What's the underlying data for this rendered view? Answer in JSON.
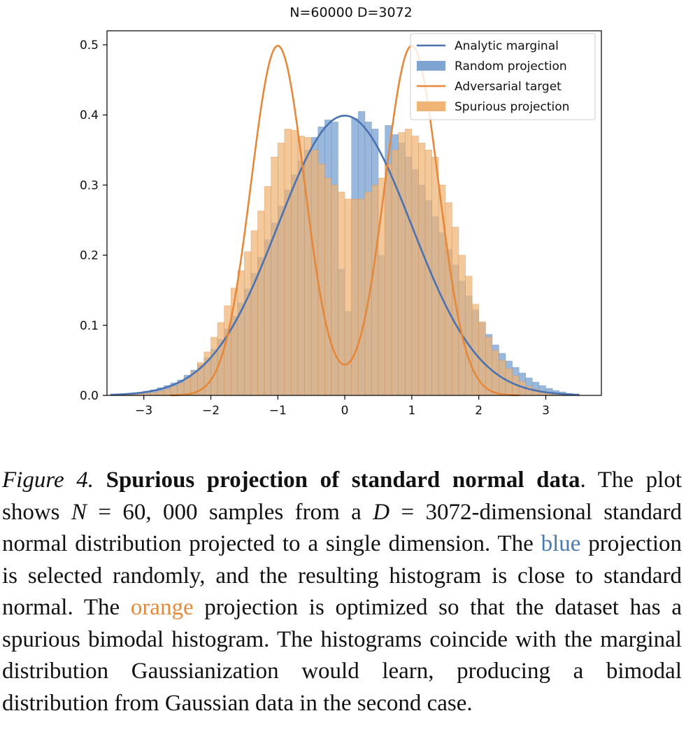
{
  "chart_data": {
    "type": "bar",
    "title": "N=60000 D=3072",
    "xlabel": "",
    "ylabel": "",
    "xlim": [
      -3.55,
      3.83
    ],
    "ylim": [
      0,
      0.52
    ],
    "x_ticks": [
      -3,
      -2,
      -1,
      0,
      1,
      2,
      3
    ],
    "x_tick_labels": [
      "−3",
      "−2",
      "−1",
      "0",
      "1",
      "2",
      "3"
    ],
    "y_ticks": [
      0.0,
      0.1,
      0.2,
      0.3,
      0.4,
      0.5
    ],
    "y_tick_labels": [
      "0.0",
      "0.1",
      "0.2",
      "0.3",
      "0.4",
      "0.5"
    ],
    "grid": false,
    "legend_position": "top-right",
    "legend": [
      {
        "label": "Analytic marginal",
        "kind": "line",
        "color": "#4a72b0"
      },
      {
        "label": "Random projection",
        "kind": "patch",
        "color": "#7ea4d2"
      },
      {
        "label": "Adversarial target",
        "kind": "line",
        "color": "#e5883a"
      },
      {
        "label": "Spurious projection",
        "kind": "patch",
        "color": "#efb476"
      }
    ],
    "histogram_bins": {
      "start": -3.4,
      "width": 0.1,
      "count": 69
    },
    "series": [
      {
        "name": "Random projection",
        "kind": "histogram",
        "color": "#7ea4d2",
        "values": [
          0.001,
          0.002,
          0.003,
          0.004,
          0.006,
          0.008,
          0.011,
          0.014,
          0.018,
          0.022,
          0.029,
          0.036,
          0.044,
          0.054,
          0.066,
          0.08,
          0.095,
          0.113,
          0.132,
          0.152,
          0.174,
          0.197,
          0.222,
          0.246,
          0.27,
          0.293,
          0.315,
          0.334,
          0.35,
          0.368,
          0.383,
          0.393,
          0.39,
          0.18,
          0.12,
          0.395,
          0.405,
          0.39,
          0.38,
          0.2,
          0.385,
          0.372,
          0.36,
          0.34,
          0.322,
          0.3,
          0.278,
          0.255,
          0.232,
          0.208,
          0.186,
          0.163,
          0.142,
          0.122,
          0.104,
          0.087,
          0.072,
          0.06,
          0.049,
          0.04,
          0.032,
          0.025,
          0.019,
          0.014,
          0.01,
          0.007,
          0.005,
          0.003,
          0.002
        ]
      },
      {
        "name": "Spurious projection",
        "kind": "histogram",
        "color": "#efb476",
        "values": [
          0.0,
          0.001,
          0.001,
          0.002,
          0.003,
          0.004,
          0.006,
          0.009,
          0.013,
          0.018,
          0.025,
          0.034,
          0.047,
          0.062,
          0.083,
          0.104,
          0.128,
          0.153,
          0.178,
          0.205,
          0.235,
          0.263,
          0.298,
          0.34,
          0.36,
          0.38,
          0.378,
          0.37,
          0.368,
          0.35,
          0.33,
          0.31,
          0.3,
          0.29,
          0.28,
          0.28,
          0.28,
          0.29,
          0.3,
          0.31,
          0.33,
          0.35,
          0.375,
          0.38,
          0.37,
          0.36,
          0.35,
          0.34,
          0.3,
          0.275,
          0.24,
          0.2,
          0.17,
          0.13,
          0.105,
          0.083,
          0.064,
          0.05,
          0.038,
          0.028,
          0.02,
          0.013,
          0.009,
          0.006,
          0.004,
          0.002,
          0.001,
          0.001,
          0.0
        ]
      },
      {
        "name": "Analytic marginal",
        "kind": "line",
        "color": "#4a72b0",
        "function": "standard_normal_pdf",
        "x_range": [
          -3.5,
          3.5
        ]
      },
      {
        "name": "Adversarial target",
        "kind": "line",
        "color": "#e5883a",
        "function": "gaussian_mixture",
        "components": [
          {
            "mean": -1.0,
            "std": 0.4,
            "weight": 0.5
          },
          {
            "mean": 1.0,
            "std": 0.4,
            "weight": 0.5
          }
        ],
        "x_range": [
          -2.6,
          2.6
        ]
      }
    ]
  },
  "caption": {
    "label": "Figure 4.",
    "title": "Spurious projection of standard normal data",
    "part1": ". The plot shows ",
    "n_var": "N",
    "n_val": " = 60, 000",
    "part2": " samples from a ",
    "d_var": "D",
    "d_val": " = 3072",
    "part3": "-dimensional standard normal distribution projected to a single dimension. The ",
    "blue_word": "blue",
    "part4": " projection is selected randomly, and the resulting histogram is close to standard normal. The ",
    "orange_word": "orange",
    "part5": " projection is optimized so that the dataset has a spurious bimodal histogram. The histograms coincide with the marginal distribution Gaussianization would learn, producing a bimodal distribution from Gaussian data in the second case."
  }
}
